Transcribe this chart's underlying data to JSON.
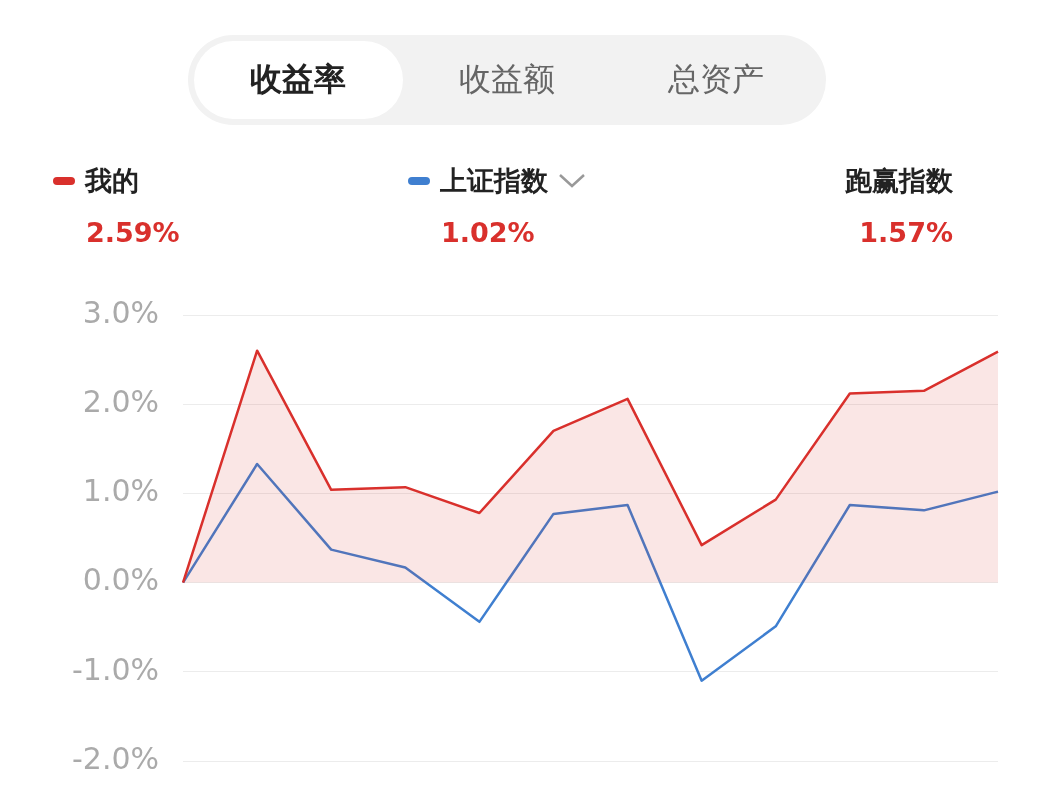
{
  "chart_data": {
    "type": "line",
    "categories": [
      null,
      null,
      null,
      null,
      null,
      null,
      null,
      null,
      null,
      null,
      null,
      null
    ],
    "series": [
      {
        "name": "我的",
        "type": "area",
        "color": "#d9302c",
        "values": [
          0,
          2.6,
          1.04,
          1.07,
          0.78,
          1.7,
          2.06,
          0.42,
          0.93,
          2.12,
          2.15,
          2.59
        ]
      },
      {
        "name": "上证指数",
        "color": "#3f7fd0",
        "values": [
          0,
          1.33,
          0.37,
          0.17,
          -0.44,
          0.77,
          0.87,
          -1.1,
          -0.49,
          0.87,
          0.81,
          1.02
        ]
      }
    ],
    "ylim": [
      -2,
      3
    ],
    "yticks": [
      {
        "value": -2,
        "label": "-2.0%"
      },
      {
        "value": -1,
        "label": "-1.0%"
      },
      {
        "value": 0,
        "label": "0.0%"
      },
      {
        "value": 1,
        "label": "1.0%"
      },
      {
        "value": 2,
        "label": "2.0%"
      },
      {
        "value": 3,
        "label": "3.0%"
      }
    ],
    "grid": "y",
    "legend": "top",
    "marker": "none",
    "tick_labels": "y",
    "annotations": [
      "收益率",
      "收益额",
      "总资产",
      "2.59%",
      "1.02%",
      "跑赢指数",
      "1.57%"
    ]
  }
}
